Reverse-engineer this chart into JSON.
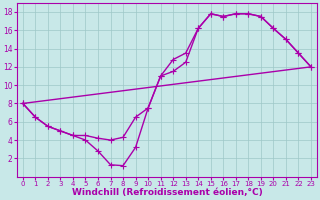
{
  "background_color": "#c8e8e8",
  "line_color": "#aa00aa",
  "marker": "+",
  "markersize": 4,
  "linewidth": 1.0,
  "xlabel": "Windchill (Refroidissement éolien,°C)",
  "xlabel_fontsize": 6.5,
  "xlabel_fontweight": "bold",
  "xtick_fontsize": 5.0,
  "ytick_fontsize": 5.5,
  "xlim": [
    -0.5,
    23.5
  ],
  "ylim": [
    0,
    19
  ],
  "xticks": [
    0,
    1,
    2,
    3,
    4,
    5,
    6,
    7,
    8,
    9,
    10,
    11,
    12,
    13,
    14,
    15,
    16,
    17,
    18,
    19,
    20,
    21,
    22,
    23
  ],
  "yticks": [
    2,
    4,
    6,
    8,
    10,
    12,
    14,
    16,
    18
  ],
  "grid_color": "#9ec8c8",
  "lines": [
    {
      "x": [
        0,
        1,
        2,
        3,
        4,
        5,
        6,
        7,
        8,
        9,
        10,
        11,
        12,
        13,
        14,
        15,
        16,
        17,
        18,
        19,
        20,
        21,
        22,
        23
      ],
      "y": [
        8,
        6.5,
        5.5,
        5.0,
        4.5,
        4.5,
        4.2,
        4.0,
        4.3,
        6.5,
        7.5,
        11.0,
        11.5,
        12.5,
        16.2,
        17.8,
        17.5,
        17.8,
        17.8,
        17.5,
        16.2,
        15.0,
        13.5,
        12.0
      ]
    },
    {
      "x": [
        0,
        1,
        2,
        3,
        4,
        5,
        6,
        7,
        8,
        9,
        10,
        11,
        12,
        13,
        14,
        15,
        16,
        17,
        18,
        19,
        20,
        21,
        22,
        23
      ],
      "y": [
        8,
        6.5,
        5.5,
        5.0,
        4.5,
        4.0,
        2.8,
        1.3,
        1.2,
        3.2,
        7.5,
        11.0,
        12.8,
        13.5,
        16.2,
        17.8,
        17.5,
        17.8,
        17.8,
        17.5,
        16.2,
        15.0,
        13.5,
        12.0
      ]
    },
    {
      "x": [
        0,
        23
      ],
      "y": [
        8,
        12
      ]
    }
  ]
}
